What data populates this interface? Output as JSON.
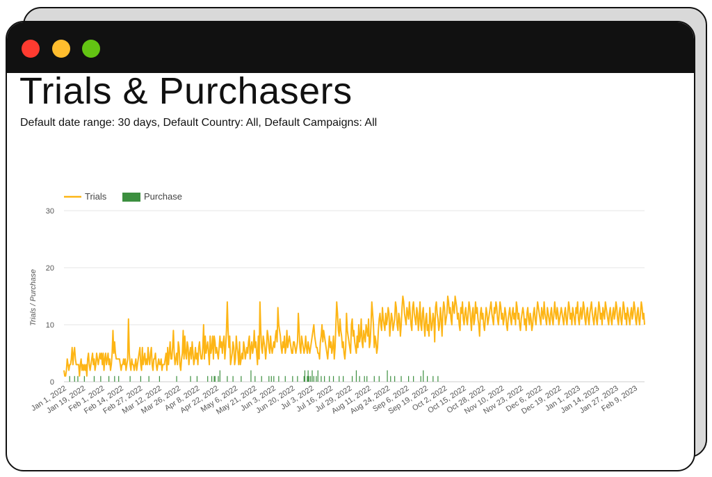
{
  "header": {
    "title": "Trials & Purchasers",
    "subtitle": "Default date range: 30 days, Default Country: All, Default Campaigns: All"
  },
  "colors": {
    "trials": "#fdb515",
    "purchase": "#3c8f3f",
    "titlebar": "#111111",
    "dot_red": "#ff3b30",
    "dot_yellow": "#ffbd2e",
    "dot_green": "#63c413"
  },
  "chart_data": {
    "type": "line",
    "title": "",
    "xlabel": "",
    "ylabel": "Trials / Purchase",
    "ylim": [
      0,
      30
    ],
    "yticks": [
      0,
      10,
      20,
      30
    ],
    "grid": true,
    "legend_position": "top-left",
    "x_start": "Jan 1, 2022",
    "x_tick_labels": [
      "Jan 1, 2022",
      "Jan 19, 2022",
      "Feb 1, 2022",
      "Feb 14, 2022",
      "Feb 27, 2022",
      "Mar 12, 2022",
      "Mar 26, 2022",
      "Apr 8, 2022",
      "Apr 22, 2022",
      "May 6, 2022",
      "May 21, 2022",
      "Jun 3, 2022",
      "Jun 20, 2022",
      "Jul 3, 2022",
      "Jul 16, 2022",
      "Jul 29, 2022",
      "Aug 11, 2022",
      "Aug 24, 2022",
      "Sep 6, 2022",
      "Sep 19, 2022",
      "Oct 2, 2022",
      "Oct 15, 2022",
      "Oct 28, 2022",
      "Nov 10, 2022",
      "Nov 23, 2022",
      "Dec 6, 2022",
      "Dec 19, 2022",
      "Jan 1, 2023",
      "Jan 14, 2023",
      "Jan 27, 2023",
      "Feb 9, 2023"
    ],
    "series": [
      {
        "name": "Trials",
        "kind": "line",
        "values": [
          2,
          1,
          1,
          2,
          4,
          3,
          2,
          3,
          3,
          4,
          6,
          3,
          5,
          6,
          4,
          3,
          3,
          3,
          3,
          1,
          3,
          4,
          2,
          3,
          2,
          3,
          2,
          3,
          1,
          4,
          5,
          3,
          2,
          3,
          4,
          5,
          3,
          4,
          2,
          3,
          5,
          4,
          3,
          4,
          5,
          4,
          5,
          3,
          5,
          2,
          4,
          5,
          3,
          4,
          5,
          3,
          4,
          2,
          3,
          5,
          9,
          5,
          7,
          5,
          4,
          4,
          4,
          4,
          4,
          3,
          2,
          3,
          3,
          4,
          3,
          4,
          2,
          3,
          4,
          11,
          5,
          3,
          2,
          4,
          3,
          3,
          2,
          3,
          4,
          2,
          3,
          4,
          5,
          6,
          3,
          2,
          6,
          3,
          4,
          5,
          3,
          4,
          3,
          6,
          4,
          3,
          5,
          6,
          3,
          2,
          4,
          4,
          5,
          3,
          2,
          3,
          4,
          3,
          3,
          4,
          2,
          3,
          3,
          3,
          4,
          5,
          2,
          6,
          3,
          5,
          7,
          4,
          4,
          6,
          9,
          5,
          3,
          4,
          5,
          3,
          7,
          6,
          3,
          2,
          4,
          5,
          9,
          4,
          8,
          5,
          4,
          7,
          6,
          3,
          5,
          6,
          4,
          7,
          5,
          3,
          4,
          6,
          4,
          5,
          3,
          6,
          7,
          5,
          4,
          4,
          6,
          10,
          4,
          8,
          5,
          6,
          7,
          5,
          3,
          8,
          5,
          6,
          8,
          4,
          8,
          7,
          5,
          6,
          5,
          4,
          6,
          8,
          6,
          7,
          5,
          7,
          8,
          4,
          6,
          9,
          14,
          9,
          6,
          8,
          3,
          4,
          5,
          7,
          6,
          3,
          4,
          8,
          6,
          5,
          3,
          7,
          3,
          4,
          5,
          4,
          7,
          6,
          4,
          5,
          6,
          5,
          7,
          8,
          4,
          6,
          7,
          5,
          6,
          9,
          6,
          7,
          5,
          3,
          8,
          4,
          14,
          9,
          6,
          5,
          8,
          7,
          6,
          4,
          6,
          9,
          8,
          6,
          5,
          8,
          6,
          5,
          6,
          7,
          6,
          8,
          9,
          7,
          13,
          10,
          9,
          8,
          6,
          5,
          7,
          6,
          8,
          5,
          6,
          9,
          6,
          7,
          8,
          7,
          6,
          5,
          5,
          7,
          7,
          6,
          5,
          6,
          7,
          12,
          9,
          6,
          5,
          8,
          7,
          6,
          5,
          6,
          8,
          6,
          5,
          7,
          6,
          5,
          6,
          7,
          8,
          9,
          10,
          8,
          7,
          6,
          6,
          5,
          5,
          4,
          7,
          8,
          10,
          7,
          9,
          8,
          7,
          6,
          5,
          4,
          6,
          8,
          6,
          7,
          5,
          6,
          8,
          4,
          6,
          10,
          14,
          12,
          9,
          8,
          11,
          9,
          8,
          6,
          7,
          5,
          4,
          6,
          12,
          9,
          8,
          7,
          6,
          5,
          10,
          11,
          8,
          9,
          7,
          6,
          5,
          8,
          6,
          10,
          7,
          8,
          11,
          7,
          6,
          9,
          8,
          7,
          10,
          9,
          8,
          11,
          6,
          7,
          10,
          14,
          12,
          10,
          6,
          8,
          7,
          5,
          6,
          9,
          11,
          12,
          10,
          9,
          13,
          11,
          10,
          9,
          12,
          10,
          11,
          13,
          12,
          8,
          10,
          12,
          11,
          9,
          10,
          11,
          14,
          13,
          10,
          9,
          12,
          11,
          8,
          10,
          13,
          15,
          14,
          12,
          11,
          10,
          13,
          12,
          11,
          14,
          12,
          10,
          9,
          13,
          14,
          12,
          11,
          10,
          13,
          12,
          9,
          11,
          14,
          10,
          9,
          12,
          13,
          10,
          8,
          11,
          12,
          9,
          10,
          8,
          13,
          11,
          9,
          10,
          12,
          11,
          7,
          13,
          14,
          12,
          11,
          9,
          10,
          13,
          11,
          8,
          12,
          14,
          13,
          10,
          11,
          12,
          15,
          14,
          12,
          13,
          11,
          10,
          14,
          13,
          12,
          15,
          14,
          13,
          11,
          12,
          10,
          9,
          13,
          12,
          14,
          11,
          10,
          12,
          13,
          11,
          10,
          12,
          14,
          13,
          11,
          9,
          12,
          13,
          10,
          11,
          14,
          12,
          13,
          11,
          10,
          8,
          12,
          13,
          11,
          12,
          10,
          9,
          11,
          13,
          12,
          10,
          11,
          12,
          13,
          14,
          12,
          11,
          10,
          13,
          12,
          14,
          13,
          11,
          10,
          12,
          14,
          13,
          11,
          12,
          10,
          11,
          13,
          12,
          10,
          9,
          11,
          12,
          13,
          11,
          10,
          12,
          13,
          11,
          12,
          10,
          14,
          13,
          11,
          12,
          10,
          9,
          11,
          12,
          13,
          12,
          10,
          11,
          9,
          12,
          13,
          11,
          10,
          12,
          11,
          9,
          10,
          12,
          13,
          11,
          10,
          12,
          14,
          13,
          12,
          11,
          10,
          13,
          12,
          11,
          14,
          12,
          11,
          10,
          13,
          12,
          11,
          10,
          12,
          13,
          11,
          10,
          12,
          14,
          12,
          11,
          13,
          12,
          10,
          11,
          12,
          13,
          12,
          11,
          10,
          12,
          13,
          11,
          10,
          12,
          14,
          13,
          11,
          12,
          10,
          13,
          12,
          11,
          10,
          13,
          12,
          14,
          11,
          10,
          12,
          13,
          11,
          12,
          14,
          13,
          11,
          10,
          12,
          13,
          11,
          10,
          12,
          13,
          14,
          12,
          11,
          10,
          12,
          13,
          11,
          10,
          12,
          14,
          13,
          11,
          12,
          10,
          13,
          12,
          11,
          14,
          13,
          12,
          11,
          10,
          12,
          13,
          11,
          10,
          12,
          13,
          11,
          12,
          14,
          13,
          11,
          10,
          12,
          13,
          11,
          10,
          12,
          14,
          13,
          11,
          12,
          10,
          13,
          12,
          11,
          10,
          12,
          13,
          11,
          12,
          14,
          13,
          11,
          10,
          12,
          13,
          11,
          10,
          12,
          14,
          13,
          11,
          12,
          10
        ]
      },
      {
        "name": "Purchase",
        "kind": "bar",
        "values": [
          0,
          0,
          0,
          0,
          0,
          0,
          0,
          1,
          0,
          0,
          0,
          0,
          0,
          1,
          0,
          0,
          0,
          1,
          0,
          0,
          0,
          0,
          0,
          0,
          0,
          1,
          0,
          0,
          0,
          0,
          0,
          0,
          0,
          0,
          0,
          0,
          0,
          1,
          0,
          0,
          0,
          0,
          0,
          0,
          0,
          1,
          0,
          0,
          0,
          0,
          0,
          0,
          0,
          0,
          0,
          1,
          0,
          0,
          0,
          0,
          0,
          0,
          1,
          0,
          0,
          0,
          0,
          1,
          0,
          0,
          0,
          0,
          0,
          0,
          0,
          0,
          0,
          0,
          0,
          0,
          0,
          1,
          0,
          0,
          0,
          0,
          0,
          0,
          0,
          0,
          0,
          0,
          0,
          0,
          1,
          0,
          0,
          0,
          0,
          0,
          0,
          0,
          0,
          0,
          1,
          0,
          0,
          0,
          0,
          0,
          0,
          0,
          0,
          0,
          0,
          0,
          0,
          1,
          0,
          0,
          0,
          0,
          0,
          0,
          0,
          0,
          0,
          0,
          0,
          0,
          0,
          0,
          0,
          0,
          0,
          0,
          0,
          0,
          1,
          0,
          0,
          0,
          0,
          0,
          0,
          0,
          0,
          0,
          0,
          0,
          0,
          0,
          0,
          0,
          0,
          1,
          0,
          0,
          0,
          0,
          0,
          0,
          0,
          1,
          0,
          0,
          0,
          0,
          0,
          0,
          0,
          0,
          0,
          0,
          0,
          0,
          1,
          0,
          0,
          0,
          0,
          1,
          0,
          0,
          1,
          1,
          0,
          0,
          0,
          1,
          0,
          2,
          0,
          0,
          0,
          0,
          0,
          0,
          0,
          0,
          1,
          0,
          0,
          0,
          0,
          0,
          0,
          1,
          0,
          0,
          0,
          0,
          0,
          0,
          0,
          0,
          0,
          1,
          0,
          0,
          0,
          0,
          0,
          0,
          0,
          0,
          0,
          0,
          0,
          2,
          0,
          0,
          0,
          0,
          1,
          0,
          0,
          0,
          0,
          0,
          0,
          0,
          1,
          0,
          0,
          0,
          0,
          0,
          0,
          0,
          0,
          1,
          0,
          0,
          1,
          0,
          0,
          1,
          0,
          0,
          0,
          0,
          0,
          1,
          0,
          0,
          0,
          0,
          0,
          0,
          0,
          1,
          0,
          0,
          0,
          0,
          0,
          0,
          0,
          0,
          1,
          0,
          0,
          0,
          0,
          0,
          1,
          0,
          0,
          0,
          0,
          0,
          0,
          0,
          1,
          2,
          0,
          0,
          1,
          2,
          1,
          0,
          1,
          0,
          2,
          0,
          1,
          0,
          0,
          1,
          0,
          2,
          0,
          0,
          0,
          1,
          0,
          0,
          0,
          1,
          0,
          0,
          0,
          0,
          0,
          1,
          0,
          0,
          0,
          0,
          1,
          0,
          0,
          0,
          0,
          0,
          0,
          1,
          0,
          0,
          0,
          0,
          1,
          0,
          0,
          0,
          0,
          0,
          0,
          0,
          0,
          0,
          0,
          1,
          0,
          0,
          0,
          0,
          2,
          0,
          0,
          0,
          1,
          0,
          0,
          0,
          0,
          0,
          1,
          0,
          0,
          1,
          0,
          0,
          0,
          0,
          0,
          0,
          0,
          0,
          1,
          0,
          0,
          0,
          0,
          0,
          1,
          0,
          0,
          0,
          0,
          0,
          0,
          0,
          0,
          0,
          2,
          0,
          0,
          0,
          1,
          0,
          0,
          0,
          0,
          1,
          0,
          0,
          0,
          0,
          0,
          0,
          0,
          1,
          0,
          0,
          0,
          0,
          0,
          0,
          0,
          0,
          1,
          0,
          0,
          0,
          0,
          0,
          1,
          0,
          0,
          0,
          0,
          0,
          0,
          0,
          0,
          1,
          0,
          0,
          2,
          0,
          0,
          0,
          0,
          1,
          0,
          0,
          0,
          0,
          0,
          0,
          1,
          0,
          0,
          0,
          0,
          0,
          1
        ]
      }
    ]
  }
}
